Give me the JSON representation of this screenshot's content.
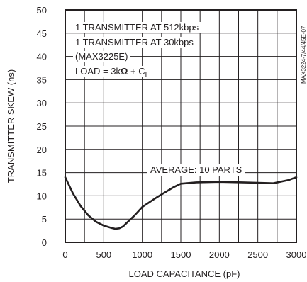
{
  "chart_data": {
    "type": "line",
    "title": "",
    "xlabel": "LOAD CAPACITANCE (pF)",
    "ylabel": "TRANSMITTER SKEW (ns)",
    "xlim": [
      0,
      3000
    ],
    "ylim": [
      0,
      50
    ],
    "x_ticks": [
      0,
      500,
      1000,
      1500,
      2000,
      2500,
      3000
    ],
    "y_ticks": [
      0,
      5,
      10,
      15,
      20,
      25,
      30,
      35,
      40,
      45,
      50
    ],
    "grid": true,
    "legend_lines": [
      "1 TRANSMITTER AT 512kbps",
      "1 TRANSMITTER AT 30kbps",
      "(MAX3225E)"
    ],
    "load_text": {
      "prefix": "LOAD = 3k",
      "omega": "Ω",
      "mid": " + C",
      "sub": "L"
    },
    "annotation": "AVERAGE: 10 PARTS",
    "figure_id": "MAX3224-7/44/45E-07",
    "series": [
      {
        "x": [
          0,
          100,
          200,
          300,
          400,
          500,
          600,
          650,
          700,
          750,
          800,
          900,
          1000,
          1200,
          1400,
          1500,
          1700,
          2000,
          2300,
          2500,
          2700,
          2900,
          3000
        ],
        "y": [
          14,
          10.5,
          7.8,
          5.8,
          4.4,
          3.6,
          3.1,
          2.9,
          3.0,
          3.4,
          4.2,
          5.8,
          7.6,
          9.8,
          11.8,
          12.6,
          12.9,
          13.0,
          12.9,
          12.8,
          12.7,
          13.4,
          14.0
        ]
      }
    ]
  }
}
